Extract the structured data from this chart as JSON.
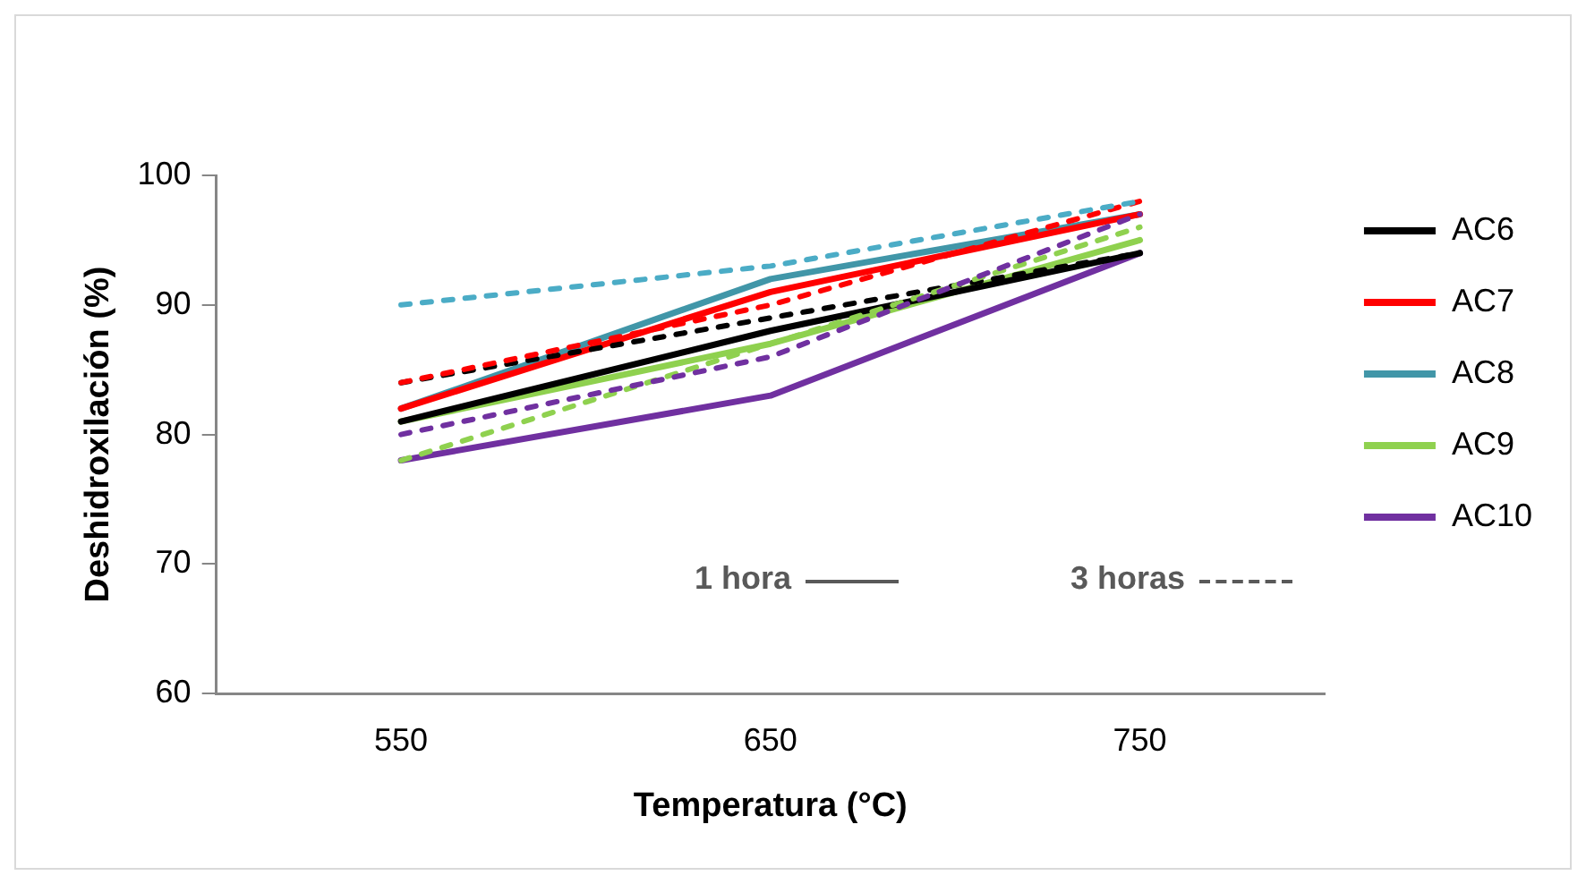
{
  "chart_data": {
    "type": "line",
    "xlabel": "Temperatura (°C)",
    "ylabel": "Deshidroxilación (%)",
    "categories": [
      "550",
      "650",
      "750"
    ],
    "ylim": [
      60,
      100
    ],
    "yticks": [
      60,
      70,
      80,
      90,
      100
    ],
    "grid": false,
    "legend": "right",
    "marker": "none",
    "annotations": [
      "1 hora",
      "3 horas"
    ],
    "series": [
      {
        "name": "AC6",
        "color": "#000000",
        "values": [
          81,
          88,
          94
        ],
        "line_style": "solid"
      },
      {
        "name": "AC7",
        "color": "#ff0000",
        "values": [
          82,
          91,
          97
        ],
        "line_style": "solid"
      },
      {
        "name": "AC8",
        "color": "#4196a8",
        "values": [
          82,
          92,
          97
        ],
        "line_style": "solid"
      },
      {
        "name": "AC9",
        "color": "#8fd14f",
        "values": [
          81,
          87,
          95
        ],
        "line_style": "solid"
      },
      {
        "name": "AC10",
        "color": "#7030a0",
        "values": [
          78,
          83,
          94
        ],
        "line_style": "solid"
      },
      {
        "color": "#000000",
        "values": [
          84,
          89,
          94
        ],
        "line_style": "dashed"
      },
      {
        "color": "#ff0000",
        "values": [
          84,
          90,
          98
        ],
        "line_style": "dashed"
      },
      {
        "color": "#4bacc6",
        "values": [
          90,
          93,
          98
        ],
        "line_style": "dashed"
      },
      {
        "color": "#8fd14f",
        "values": [
          78,
          87,
          96
        ],
        "line_style": "dashed"
      },
      {
        "color": "#7030a0",
        "values": [
          80,
          86,
          97
        ],
        "line_style": "dashed"
      }
    ]
  }
}
